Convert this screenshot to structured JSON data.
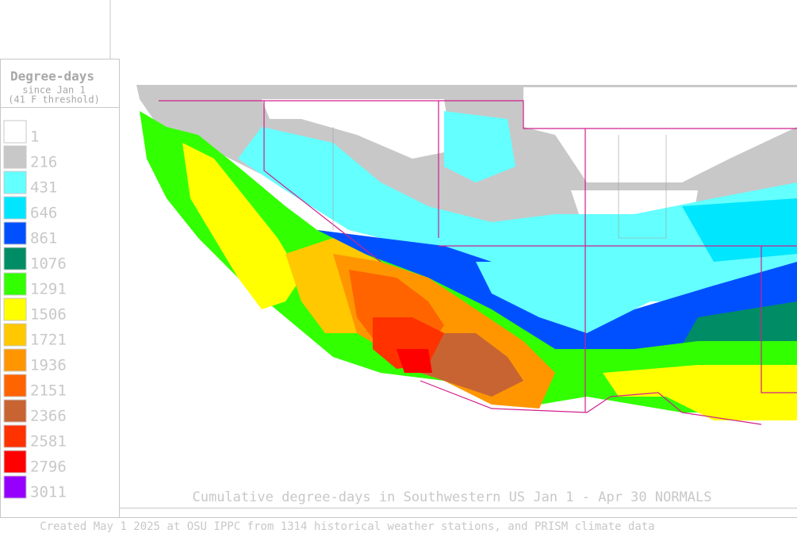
{
  "legend": {
    "title": "Degree-days",
    "subtitle": "since Jan 1",
    "note": "(41 F threshold)",
    "items": [
      {
        "label": "1",
        "color": "#ffffff"
      },
      {
        "label": "216",
        "color": "#c8c8c8"
      },
      {
        "label": "431",
        "color": "#64ffff"
      },
      {
        "label": "646",
        "color": "#00e6ff"
      },
      {
        "label": "861",
        "color": "#0050ff"
      },
      {
        "label": "1076",
        "color": "#008c64"
      },
      {
        "label": "1291",
        "color": "#32ff00"
      },
      {
        "label": "1506",
        "color": "#ffff00"
      },
      {
        "label": "1721",
        "color": "#ffc800"
      },
      {
        "label": "1936",
        "color": "#ff9600"
      },
      {
        "label": "2151",
        "color": "#ff6400"
      },
      {
        "label": "2366",
        "color": "#c86432"
      },
      {
        "label": "2581",
        "color": "#ff3200"
      },
      {
        "label": "2796",
        "color": "#ff0000"
      },
      {
        "label": "3011",
        "color": "#9600ff"
      }
    ]
  },
  "map": {
    "caption": "Cumulative degree-days in Southwestern US Jan 1 - Apr 30 NORMALS"
  },
  "footer": "Created May 1 2025 at OSU IPPC from 1314 historical weather stations, and PRISM climate data"
}
